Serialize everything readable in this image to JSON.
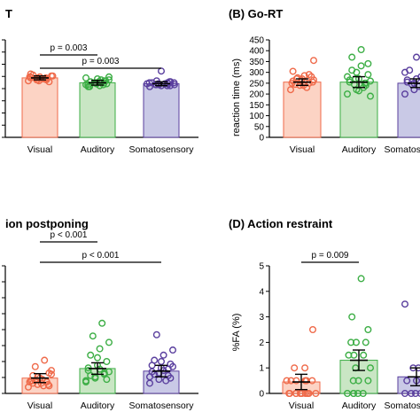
{
  "colors": {
    "visual": {
      "fill": "#fcd3c4",
      "stroke": "#ef6a4a"
    },
    "auditory": {
      "fill": "#c9e6c4",
      "stroke": "#3cae45"
    },
    "somatosensory": {
      "fill": "#c9c9e6",
      "stroke": "#5a3f9e"
    }
  },
  "categories": [
    "Visual",
    "Auditory",
    "Somatosensory"
  ],
  "chart_data": [
    {
      "panel": "A",
      "type": "bar",
      "title": "T",
      "ylabel": "",
      "ylim": [
        0,
        500
      ],
      "yticks": [],
      "categories": [
        "Visual",
        "Auditory",
        "Somatosensory"
      ],
      "values": [
        305,
        280,
        275
      ],
      "error": [
        10,
        12,
        10
      ],
      "points": [
        [
          290,
          295,
          300,
          305,
          310,
          285,
          320,
          300,
          315,
          295,
          305,
          310,
          290,
          300,
          325,
          305,
          295,
          310,
          300,
          315
        ],
        [
          270,
          280,
          290,
          260,
          300,
          275,
          285,
          265,
          295,
          280,
          270,
          305,
          275,
          290,
          260,
          285,
          280,
          270,
          295,
          310
        ],
        [
          260,
          270,
          275,
          280,
          265,
          285,
          270,
          275,
          280,
          290,
          265,
          275,
          270,
          285,
          280,
          340,
          270,
          275,
          280,
          265
        ]
      ],
      "brackets": [
        {
          "from": 0,
          "to": 1,
          "label": "p = 0.003"
        },
        {
          "from": 0,
          "to": 2,
          "label": "p = 0.003"
        }
      ]
    },
    {
      "panel": "B",
      "type": "bar",
      "title": "(B) Go-RT",
      "ylabel": "reaction time (ms)",
      "ylim": [
        0,
        450
      ],
      "yticks": [
        0,
        50,
        100,
        150,
        200,
        250,
        300,
        350,
        400,
        450
      ],
      "categories": [
        "Visual",
        "Auditory",
        "Somatosensory"
      ],
      "values": [
        255,
        255,
        250
      ],
      "error": [
        15,
        25,
        20
      ],
      "points": [
        [
          220,
          240,
          250,
          260,
          270,
          280,
          245,
          255,
          265,
          275,
          230,
          250,
          260,
          290,
          305,
          240,
          255,
          270,
          285,
          355
        ],
        [
          200,
          220,
          240,
          255,
          270,
          290,
          310,
          330,
          260,
          245,
          230,
          280,
          300,
          250,
          265,
          215,
          340,
          370,
          405,
          190,
          270,
          250
        ],
        [
          200,
          220,
          240,
          255,
          270,
          290,
          310,
          235,
          260,
          245,
          280,
          300,
          250,
          225,
          265,
          370,
          385
        ]
      ],
      "brackets": []
    },
    {
      "panel": "C",
      "type": "bar",
      "title": "ion postponing",
      "ylabel": "",
      "ylim": [
        0,
        10
      ],
      "yticks": [],
      "categories": [
        "Visual",
        "Auditory",
        "Somatosensory"
      ],
      "values": [
        1.2,
        1.95,
        1.75
      ],
      "error": [
        0.35,
        0.45,
        0.45
      ],
      "points": [
        [
          0.5,
          0.7,
          0.9,
          1.0,
          1.2,
          0.6,
          0.8,
          1.1,
          1.5,
          2.1,
          2.6,
          0.9,
          1.3,
          0.7,
          1.0,
          0.8,
          1.6,
          1.4,
          0.6,
          1.8
        ],
        [
          0.9,
          1.2,
          1.5,
          1.8,
          2.2,
          2.5,
          3.0,
          3.5,
          4.0,
          4.5,
          5.5,
          1.0,
          1.3,
          1.6,
          2.0,
          2.8,
          1.1,
          1.4,
          1.9,
          1.7
        ],
        [
          0.8,
          1.1,
          1.4,
          1.7,
          2.0,
          2.3,
          2.6,
          3.0,
          3.4,
          4.6,
          1.0,
          1.3,
          1.6,
          1.9,
          2.2,
          2.5,
          1.2,
          1.5,
          1.8,
          2.1
        ]
      ],
      "brackets": [
        {
          "from": 0,
          "to": 1,
          "label": "p < 0.001"
        },
        {
          "from": 0,
          "to": 2,
          "label": "p < 0.001"
        }
      ]
    },
    {
      "panel": "D",
      "type": "bar",
      "title": "(D) Action restraint",
      "ylabel": "%FA (%)",
      "ylim": [
        0,
        5
      ],
      "yticks": [
        0,
        1,
        2,
        3,
        4,
        5
      ],
      "categories": [
        "Visual",
        "Auditory",
        "Somatosensory"
      ],
      "values": [
        0.45,
        1.3,
        0.65
      ],
      "error": [
        0.3,
        0.4,
        0.35
      ],
      "points": [
        [
          0,
          0,
          0,
          0,
          0,
          0,
          0,
          0,
          0,
          0,
          0.5,
          0.5,
          0.5,
          0.5,
          0.5,
          0.5,
          0.5,
          1.0,
          1.0,
          2.5
        ],
        [
          0,
          0,
          0,
          0,
          0,
          0.5,
          0.5,
          0.5,
          1.0,
          1.0,
          1.5,
          1.5,
          1.5,
          2.0,
          2.0,
          2.0,
          2.5,
          3.0,
          4.5
        ],
        [
          0,
          0,
          0,
          0,
          0.5,
          0.5,
          0.5,
          0.5,
          1.0,
          1.0,
          1.0,
          3.5
        ]
      ],
      "brackets": [
        {
          "from": 0,
          "to": 1,
          "label": "p = 0.009"
        }
      ]
    }
  ]
}
